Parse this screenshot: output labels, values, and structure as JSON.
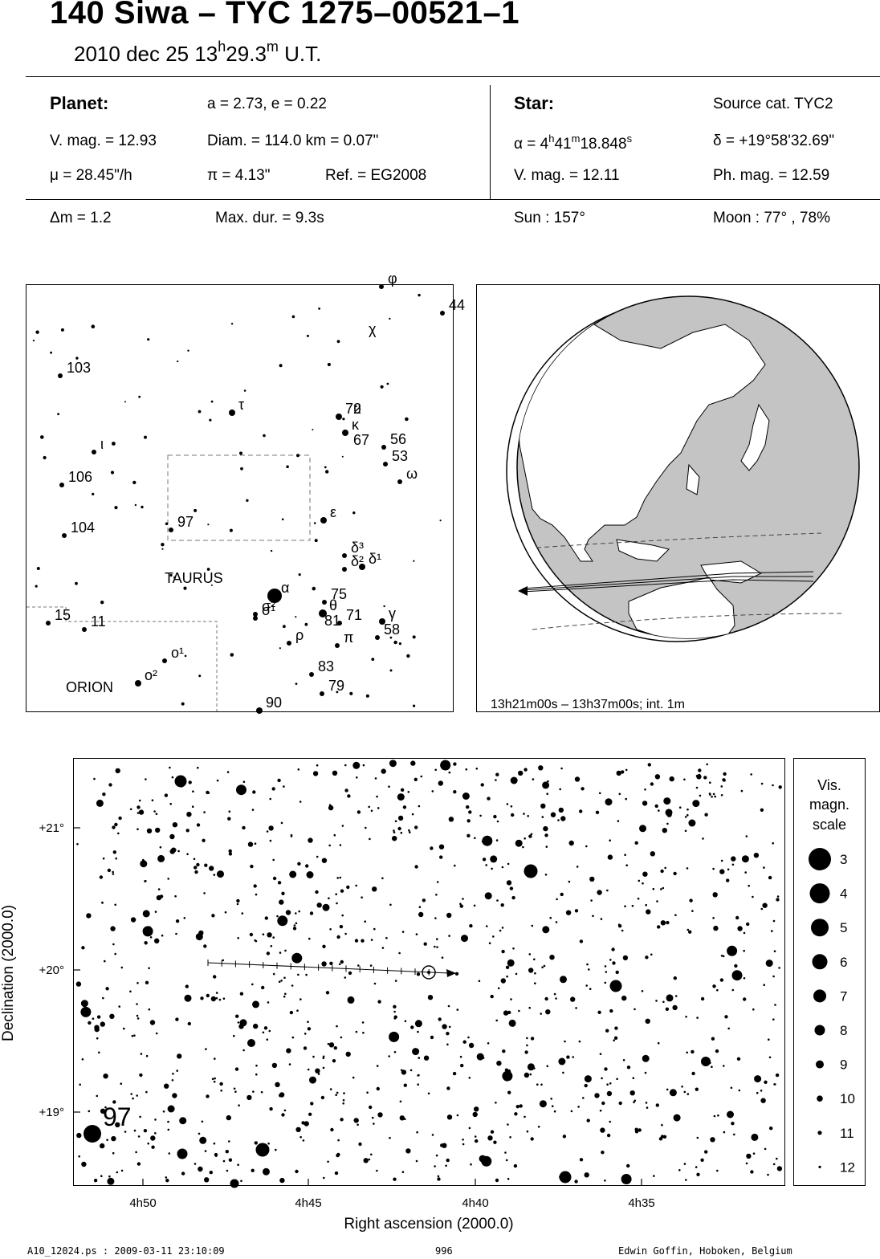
{
  "header": {
    "title": "140 Siwa  –  TYC 1275–00521–1",
    "date": "2010 dec 25  13",
    "hour_sup": "h",
    "minutes": "29.3",
    "min_sup": "m",
    "ut": " U.T."
  },
  "planet": {
    "label": "Planet:",
    "orbit": "a = 2.73, e = 0.22",
    "vmag": "V. mag. = 12.93",
    "diam": "Diam. = 114.0 km = 0.07\"",
    "mu": "μ =  28.45\"/h",
    "pi": "π =  4.13\"",
    "ref": "Ref. = EG2008"
  },
  "star": {
    "label": "Star:",
    "source": "Source cat.  TYC2",
    "alpha_prefix": "α =  4",
    "alpha_h": "h",
    "alpha_min": "41",
    "alpha_m": "m",
    "alpha_sec": "18.848",
    "alpha_s": "s",
    "delta": "δ = +19°58'32.69\"",
    "vmag": "V. mag. = 12.11",
    "phmag": "Ph. mag. = 12.59"
  },
  "event": {
    "dm": "Δm = 1.2",
    "maxdur": "Max. dur. = 9.3s",
    "sun": "Sun : 157°",
    "moon": "Moon :  77° , 78%"
  },
  "finder": {
    "stars": [
      {
        "x": 475,
        "y": 357,
        "r": 3,
        "t": "φ"
      },
      {
        "x": 551,
        "y": 390,
        "r": 3,
        "t": "44"
      },
      {
        "x": 451,
        "y": 420,
        "r": 0,
        "t": "χ"
      },
      {
        "x": 75,
        "y": 468,
        "r": 3,
        "t": "103"
      },
      {
        "x": 289,
        "y": 514,
        "r": 4,
        "t": "τ"
      },
      {
        "x": 422,
        "y": 519,
        "r": 4,
        "t": "72"
      },
      {
        "x": 432,
        "y": 519,
        "r": 0,
        "t": "υ"
      },
      {
        "x": 430,
        "y": 539,
        "r": 4,
        "t": "κ"
      },
      {
        "x": 432,
        "y": 558,
        "r": 0,
        "t": "67"
      },
      {
        "x": 478,
        "y": 557,
        "r": 3,
        "t": "56"
      },
      {
        "x": 480,
        "y": 578,
        "r": 3,
        "t": "53"
      },
      {
        "x": 498,
        "y": 600,
        "r": 3,
        "t": "ω"
      },
      {
        "x": 117,
        "y": 563,
        "r": 3,
        "t": "ι"
      },
      {
        "x": 77,
        "y": 604,
        "r": 3,
        "t": "106"
      },
      {
        "x": 80,
        "y": 667,
        "r": 3,
        "t": "104"
      },
      {
        "x": 213,
        "y": 660,
        "r": 3,
        "t": "97"
      },
      {
        "x": 403,
        "y": 648,
        "r": 4,
        "t": "ε"
      },
      {
        "x": 429,
        "y": 692,
        "r": 3,
        "t": "δ³"
      },
      {
        "x": 429,
        "y": 709,
        "r": 3,
        "t": "δ²"
      },
      {
        "x": 451,
        "y": 706,
        "r": 4,
        "t": "δ¹"
      },
      {
        "x": 342,
        "y": 742,
        "r": 9,
        "t": "α"
      },
      {
        "x": 404,
        "y": 750,
        "r": 3,
        "t": "75"
      },
      {
        "x": 402,
        "y": 764,
        "r": 5,
        "t": "θ"
      },
      {
        "x": 318,
        "y": 765,
        "r": 3,
        "t": "σ²"
      },
      {
        "x": 318,
        "y": 770,
        "r": 3,
        "t": "σ¹"
      },
      {
        "x": 423,
        "y": 776,
        "r": 3,
        "t": "71"
      },
      {
        "x": 476,
        "y": 774,
        "r": 4,
        "t": "γ"
      },
      {
        "x": 396,
        "y": 783,
        "r": 0,
        "t": "81"
      },
      {
        "x": 360,
        "y": 801,
        "r": 3,
        "t": "ρ"
      },
      {
        "x": 420,
        "y": 804,
        "r": 3,
        "t": "π"
      },
      {
        "x": 470,
        "y": 794,
        "r": 3,
        "t": "58"
      },
      {
        "x": 60,
        "y": 776,
        "r": 3,
        "t": "15"
      },
      {
        "x": 105,
        "y": 784,
        "r": 3,
        "t": "11"
      },
      {
        "x": 205,
        "y": 823,
        "r": 3,
        "t": "o¹"
      },
      {
        "x": 172,
        "y": 851,
        "r": 4,
        "t": "o²"
      },
      {
        "x": 388,
        "y": 840,
        "r": 3,
        "t": "83"
      },
      {
        "x": 401,
        "y": 864,
        "r": 3,
        "t": "79"
      },
      {
        "x": 323,
        "y": 885,
        "r": 4,
        "t": "90"
      }
    ],
    "constellations": [
      "TAURUS",
      "ORION"
    ]
  },
  "globe": {
    "caption": "13h21m00s – 13h37m00s; int.  1m"
  },
  "chart": {
    "xlabel": "Right ascension (2000.0)",
    "ylabel": "Declination (2000.0)",
    "xticks": [
      "4h50",
      "4h45",
      "4h40",
      "4h35"
    ],
    "yticks": [
      "+21°",
      "+20°",
      "+19°"
    ],
    "star_label": "97"
  },
  "legend": {
    "title1": "Vis.",
    "title2": "magn.",
    "title3": "scale",
    "mags": [
      "3",
      "4",
      "5",
      "6",
      "7",
      "8",
      "9",
      "10",
      "11",
      "12"
    ]
  },
  "footer": {
    "file": "A10_12024.ps : 2009-03-11 23:10:09",
    "page": "996",
    "author": "Edwin Goffin, Hoboken, Belgium"
  }
}
